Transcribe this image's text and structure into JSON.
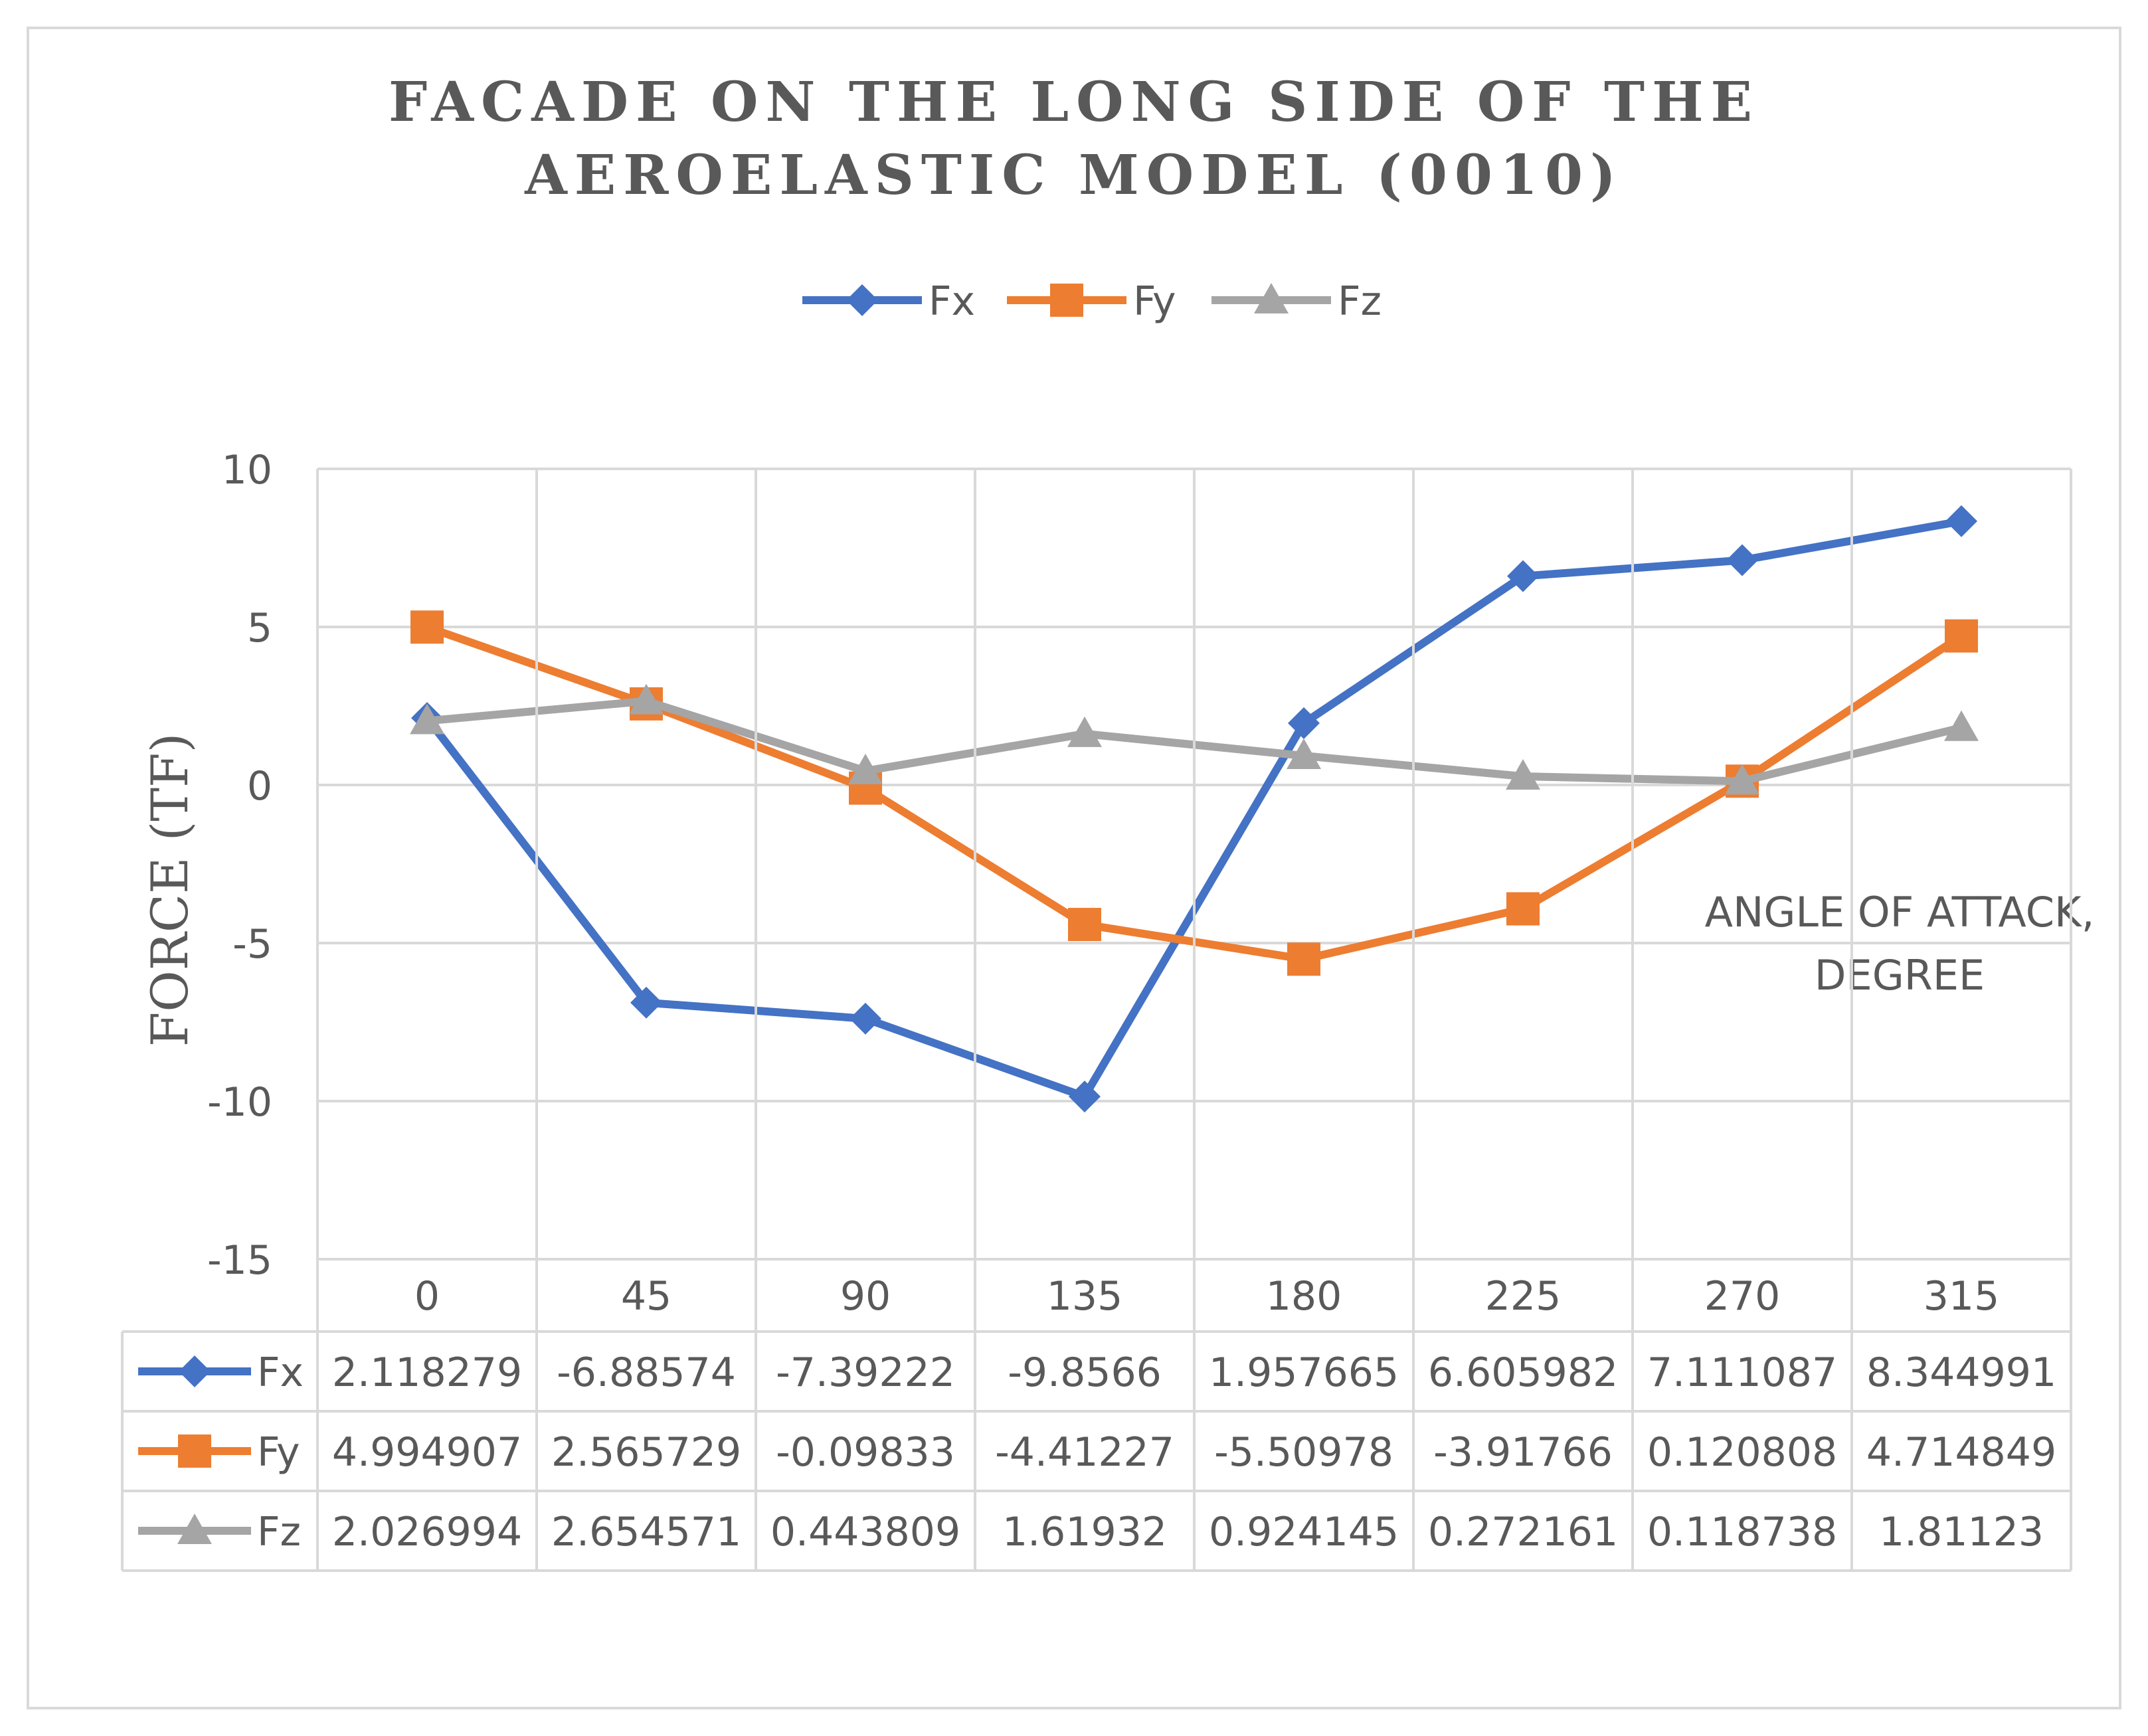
{
  "chart_data": {
    "type": "line",
    "title_lines": [
      "FACADE ON THE LONG SIDE OF THE",
      "AEROELASTIC MODEL (0010)"
    ],
    "ylabel": "FORCE (TF)",
    "xlabel_lines": [
      "ANGLE OF ATTACK,",
      "DEGREE"
    ],
    "categories": [
      "0",
      "45",
      "90",
      "135",
      "180",
      "225",
      "270",
      "315"
    ],
    "ylim": [
      -15,
      10
    ],
    "yticks": [
      10,
      5,
      0,
      -5,
      -10,
      -15
    ],
    "ytick_labels": [
      "10",
      "5",
      "0",
      "-5",
      "-10",
      "-15"
    ],
    "legend_position": "top",
    "grid": true,
    "data_table": true,
    "series": [
      {
        "name": "Fx",
        "color": "#4472C4",
        "marker": "diamond",
        "values": [
          2.118279,
          -6.88574,
          -7.39222,
          -9.8566,
          1.957665,
          6.605982,
          7.111087,
          8.344991
        ],
        "table_values": [
          "2.118279",
          "-6.88574",
          "-7.39222",
          "-9.8566",
          "1.957665",
          "6.605982",
          "7.111087",
          "8.344991"
        ]
      },
      {
        "name": "Fy",
        "color": "#ED7D31",
        "marker": "square",
        "values": [
          4.994907,
          2.565729,
          -0.09833,
          -4.41227,
          -5.50978,
          -3.91766,
          0.120808,
          4.714849
        ],
        "table_values": [
          "4.994907",
          "2.565729",
          "-0.09833",
          "-4.41227",
          "-5.50978",
          "-3.91766",
          "0.120808",
          "4.714849"
        ]
      },
      {
        "name": "Fz",
        "color": "#A5A5A5",
        "marker": "triangle",
        "values": [
          2.026994,
          2.654571,
          0.443809,
          1.61932,
          0.924145,
          0.272161,
          0.118738,
          1.81123
        ],
        "table_values": [
          "2.026994",
          "2.654571",
          "0.443809",
          "1.61932",
          "0.924145",
          "0.272161",
          "0.118738",
          "1.81123"
        ]
      }
    ]
  }
}
